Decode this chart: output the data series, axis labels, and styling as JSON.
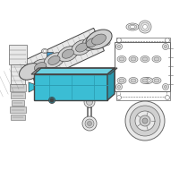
{
  "background_color": "#ffffff",
  "highlight_color": "#3bbdd4",
  "highlight_dark": "#2a9ab0",
  "highlight_light": "#6dd0e0",
  "line_color": "#666666",
  "dark_line": "#444444",
  "fill_light": "#e8e8e8",
  "fill_mid": "#d0d0d0",
  "fill_dark": "#b0b0b0",
  "thin_line": 0.4,
  "med_line": 0.7,
  "thick_line": 1.0,
  "figsize": [
    2.0,
    2.0
  ],
  "dpi": 100
}
